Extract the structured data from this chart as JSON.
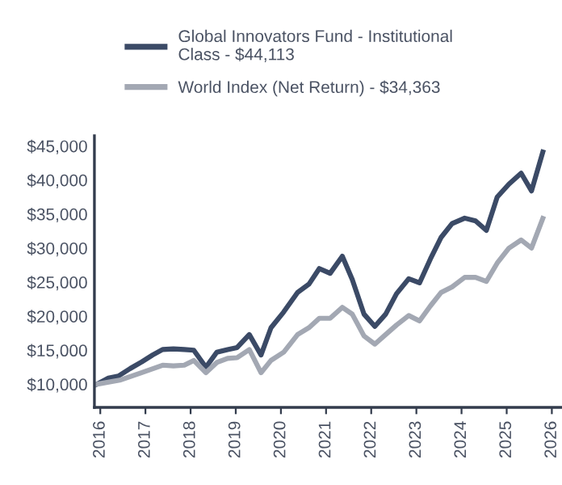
{
  "chart_data": {
    "type": "line",
    "series": [
      {
        "name": "Global Innovators Fund - Institutional\nClass - $44,113",
        "color": "#3b4a66",
        "x": [
          2015.92,
          2016.18,
          2016.4,
          2016.66,
          2016.92,
          2017.16,
          2017.38,
          2017.62,
          2017.86,
          2018.07,
          2018.34,
          2018.58,
          2018.82,
          2019.03,
          2019.3,
          2019.56,
          2019.78,
          2020.06,
          2020.37,
          2020.62,
          2020.85,
          2021.09,
          2021.36,
          2021.58,
          2021.84,
          2022.08,
          2022.32,
          2022.56,
          2022.83,
          2023.07,
          2023.31,
          2023.55,
          2023.79,
          2024.07,
          2024.31,
          2024.55,
          2024.79,
          2025.05,
          2025.32,
          2025.55,
          2025.8
        ],
        "values": [
          10000,
          10900,
          11200,
          12300,
          13300,
          14300,
          15100,
          15200,
          15100,
          15000,
          12500,
          14700,
          15100,
          15400,
          17300,
          14300,
          18300,
          20600,
          23500,
          24700,
          27000,
          26300,
          28800,
          25400,
          20300,
          18500,
          20300,
          23300,
          25500,
          24900,
          28400,
          31600,
          33600,
          34400,
          34000,
          32600,
          37500,
          39400,
          41000,
          38400,
          44113
        ]
      },
      {
        "name": "World Index (Net Return) - $34,363",
        "color": "#a3a8b3",
        "x": [
          2015.92,
          2016.43,
          2016.91,
          2017.38,
          2017.62,
          2017.86,
          2018.07,
          2018.34,
          2018.58,
          2018.82,
          2019.03,
          2019.3,
          2019.56,
          2019.78,
          2020.06,
          2020.37,
          2020.62,
          2020.85,
          2021.09,
          2021.36,
          2021.58,
          2021.84,
          2022.08,
          2022.32,
          2022.56,
          2022.83,
          2023.07,
          2023.31,
          2023.55,
          2023.79,
          2024.07,
          2024.31,
          2024.55,
          2024.79,
          2025.05,
          2025.32,
          2025.55,
          2025.8
        ],
        "values": [
          10000,
          10600,
          11700,
          12800,
          12700,
          12800,
          13500,
          11700,
          13200,
          13800,
          13900,
          15100,
          11700,
          13500,
          14700,
          17300,
          18300,
          19700,
          19700,
          21300,
          20300,
          17100,
          15900,
          17300,
          18700,
          20100,
          19300,
          21500,
          23500,
          24300,
          25700,
          25700,
          25100,
          27800,
          30000,
          31200,
          30000,
          34363
        ]
      }
    ],
    "xlim": [
      2015.87,
      2026.2
    ],
    "xticks": [
      2016,
      2017,
      2018,
      2019,
      2020,
      2021,
      2022,
      2023,
      2024,
      2025,
      2026
    ],
    "ylim": [
      6600,
      46500
    ],
    "yticks": [
      {
        "value": 10000,
        "label": "$10,000"
      },
      {
        "value": 15000,
        "label": "$15,000"
      },
      {
        "value": 20000,
        "label": "$20,000"
      },
      {
        "value": 25000,
        "label": "$25,000"
      },
      {
        "value": 30000,
        "label": "$30,000"
      },
      {
        "value": 35000,
        "label": "$35,000"
      },
      {
        "value": 40000,
        "label": "$40,000"
      },
      {
        "value": 45000,
        "label": "$45,000"
      }
    ],
    "legend": "top",
    "grid": false,
    "marker": "none",
    "line_style": "solid"
  }
}
